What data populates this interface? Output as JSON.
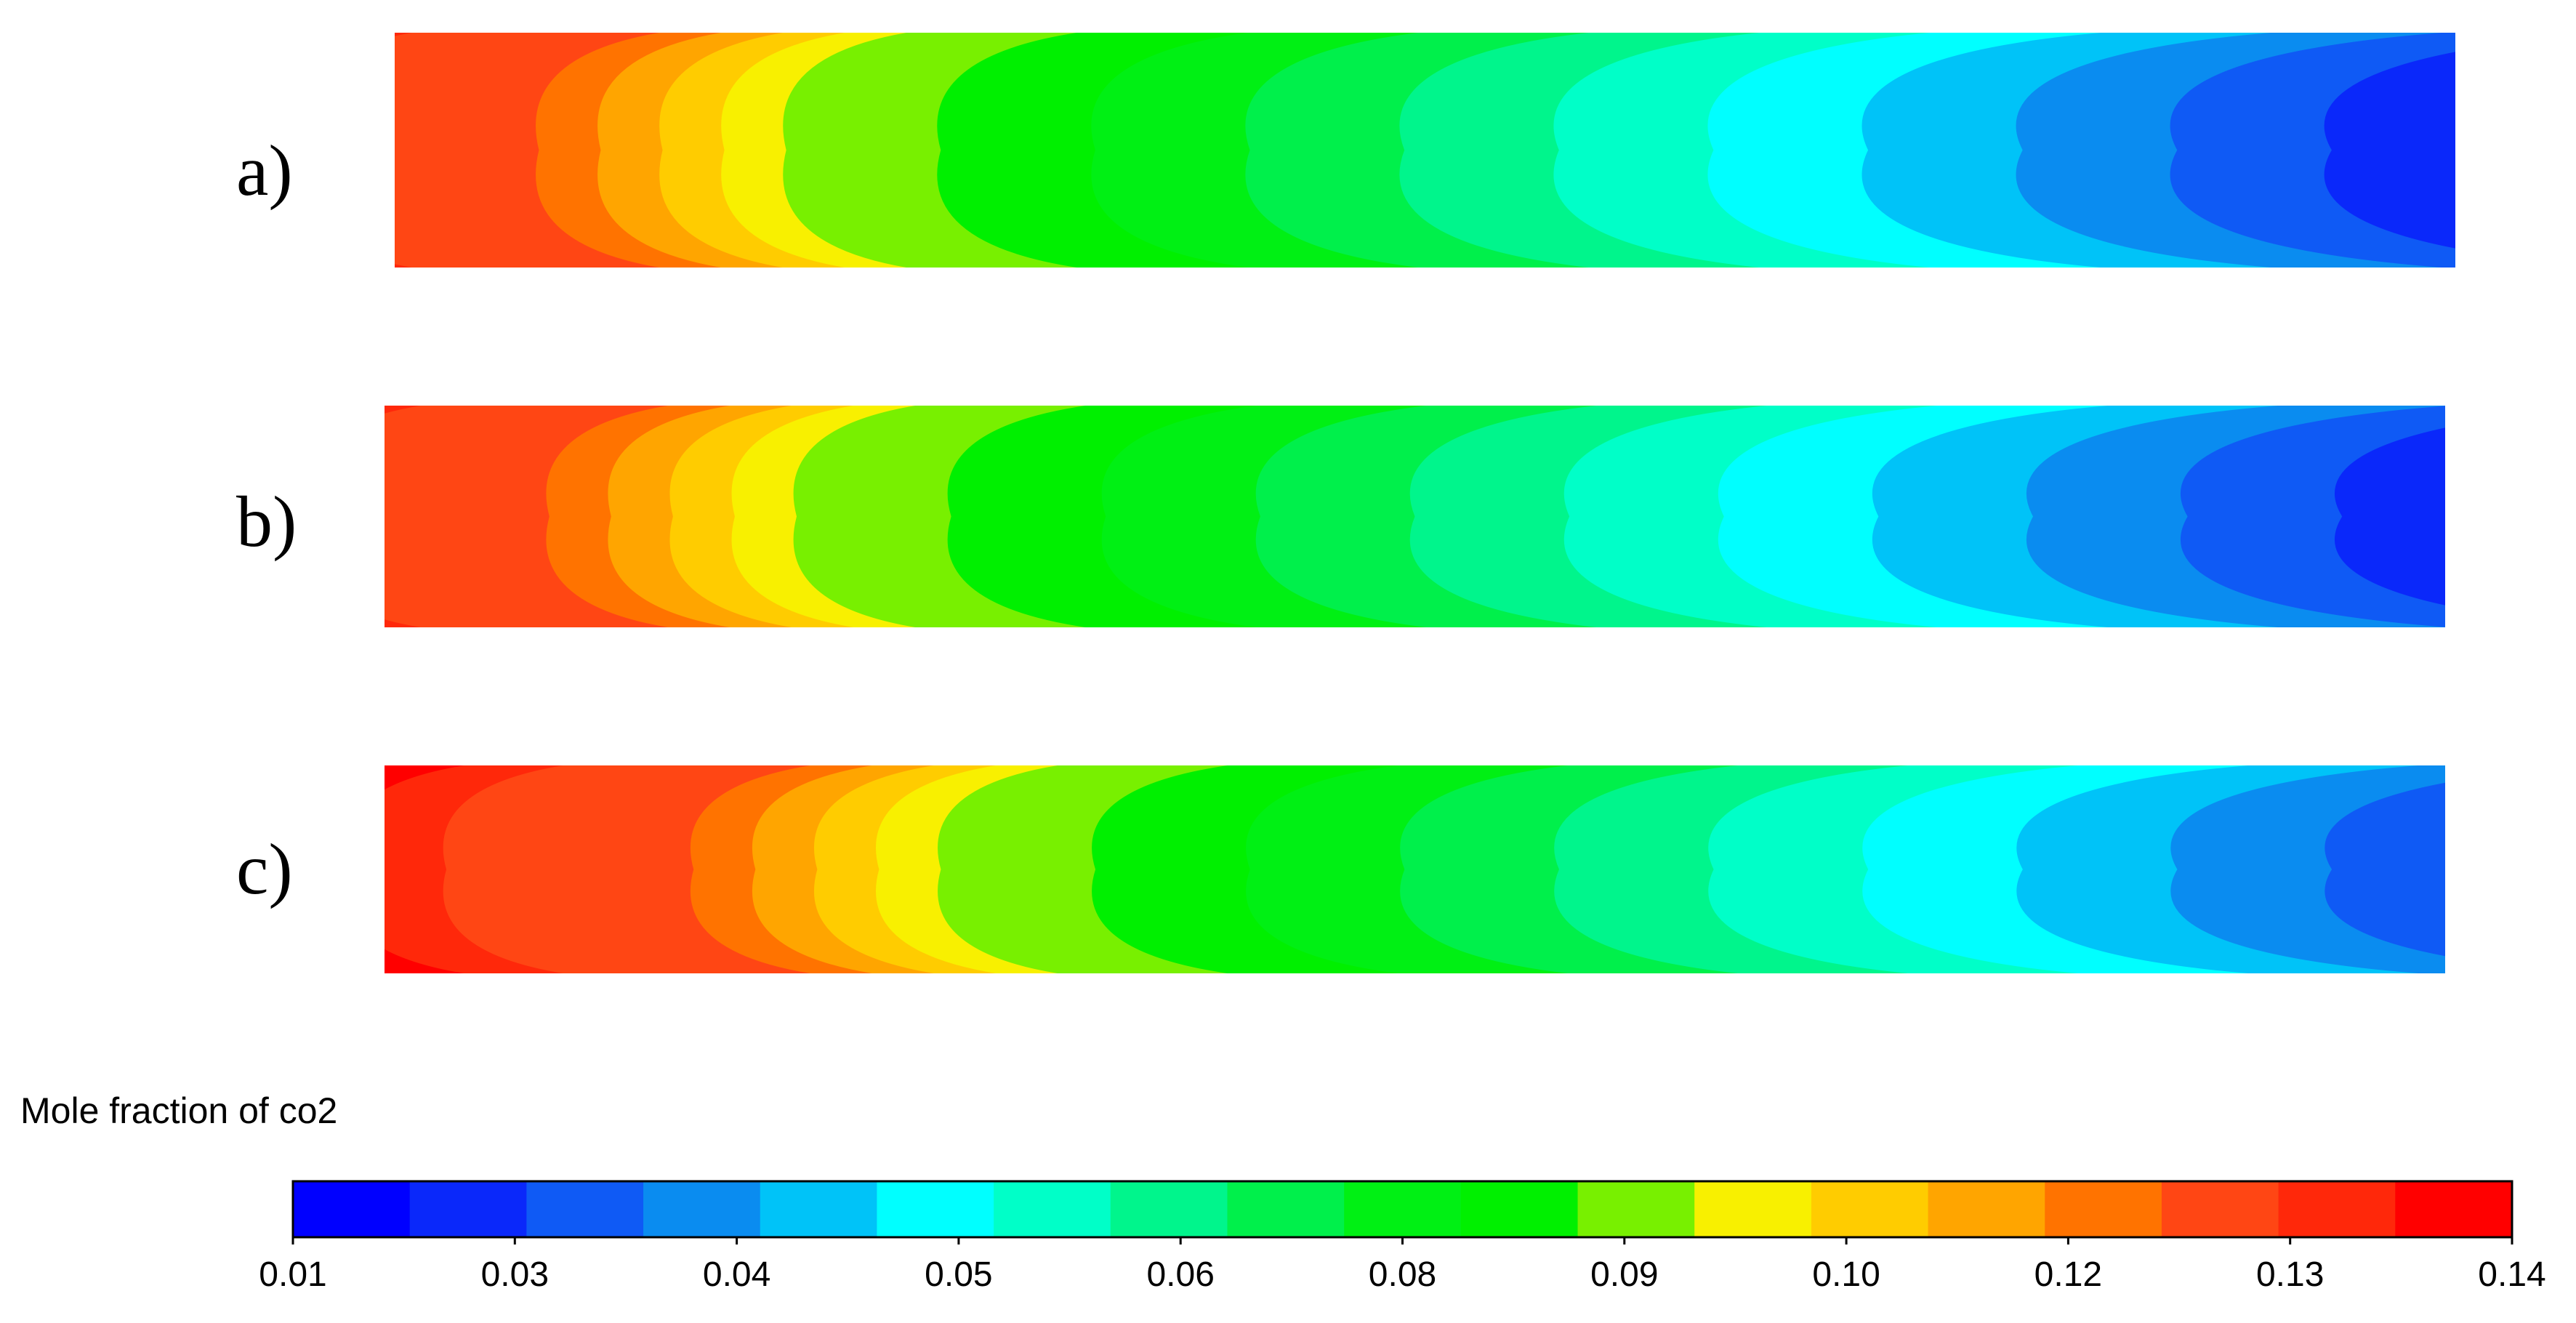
{
  "panels": [
    {
      "label": "a)",
      "front": 0.19
    },
    {
      "label": "b)",
      "front": 0.2
    },
    {
      "label": "c)",
      "front": 0.27
    }
  ],
  "colorbar": {
    "title": "Mole fraction of co2",
    "min": 0.01,
    "max": 0.14,
    "colors": [
      "#0000ff",
      "#0a28fa",
      "#0f5af5",
      "#0a8cf0",
      "#00c3f8",
      "#00ffff",
      "#00ffc8",
      "#00f58c",
      "#00f04b",
      "#00f014",
      "#00f000",
      "#78f000",
      "#f8f000",
      "#ffcc00",
      "#ffa500",
      "#ff7300",
      "#ff4614",
      "#ff280a",
      "#ff0000"
    ],
    "tick_labels": [
      "0.01",
      "0.03",
      "0.04",
      "0.05",
      "0.06",
      "0.08",
      "0.09",
      "0.10",
      "0.12",
      "0.13",
      "0.14"
    ]
  },
  "colors": {
    "background": "#ffffff",
    "outline": "#000000"
  }
}
